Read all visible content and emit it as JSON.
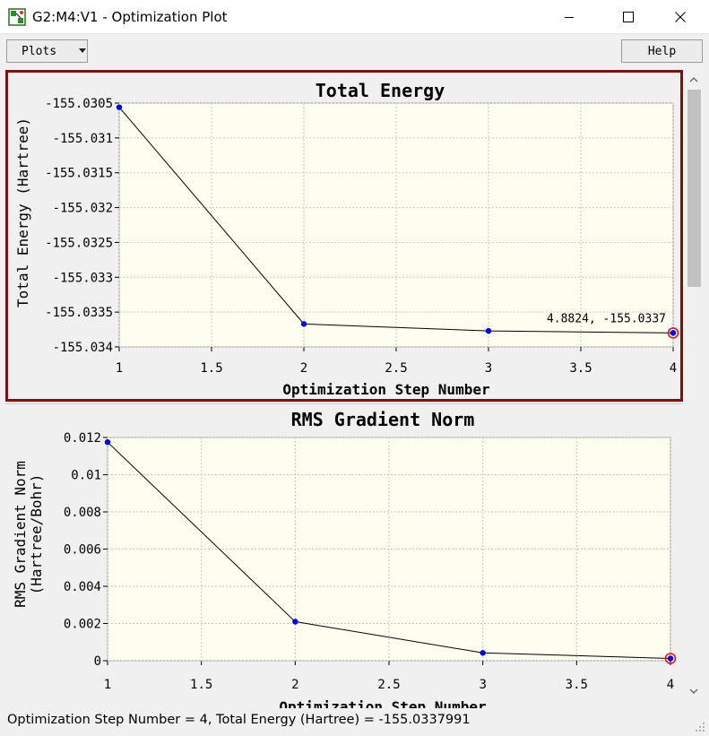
{
  "window": {
    "title": "G2:M4:V1 - Optimization Plot"
  },
  "toolbar": {
    "plots_label": "Plots",
    "help_label": "Help"
  },
  "icons": {
    "app": "molecule-app-icon",
    "minimize": "minimize-icon",
    "maximize": "maximize-icon",
    "close": "close-icon",
    "dropdown": "chevron-down-icon",
    "scroll_up": "arrow-up-icon",
    "scroll_down": "arrow-down-icon"
  },
  "colors": {
    "plot_bg": "#fdfdf0",
    "point": "#0000e6",
    "line": "#000000",
    "selected_ring": "#e01818",
    "active_border": "#7a1212"
  },
  "status": {
    "text": "Optimization Step Number = 4, Total Energy (Hartree) = -155.0337991"
  },
  "chart_data": [
    {
      "type": "line",
      "title": "Total Energy",
      "xlabel": "Optimization Step Number",
      "ylabel": "Total Energy  (Hartree)",
      "x": [
        1,
        2,
        3,
        4
      ],
      "y": [
        -155.03056,
        -155.03367,
        -155.03377,
        -155.0337991
      ],
      "xlim": [
        1,
        4
      ],
      "ylim": [
        -155.034,
        -155.0305
      ],
      "xticks": [
        "1",
        "1.5",
        "2",
        "2.5",
        "3",
        "3.5",
        "4"
      ],
      "yticks": [
        "-155.0305",
        "-155.031",
        "-155.0315",
        "-155.032",
        "-155.0325",
        "-155.033",
        "-155.0335",
        "-155.034"
      ],
      "grid": true,
      "selected_index": 3,
      "annotation": "4.8824, -155.0337"
    },
    {
      "type": "line",
      "title": "RMS Gradient Norm",
      "xlabel": "Optimization Step Number",
      "ylabel": "RMS Gradient Norm",
      "ylabel2": "(Hartree/Bohr)",
      "x": [
        1,
        2,
        3,
        4
      ],
      "y": [
        0.01175,
        0.0021,
        0.00042,
        0.00012
      ],
      "xlim": [
        1,
        4
      ],
      "ylim": [
        0,
        0.012
      ],
      "xticks": [
        "1",
        "1.5",
        "2",
        "2.5",
        "3",
        "3.5",
        "4"
      ],
      "yticks": [
        "0.012",
        "0.01",
        "0.008",
        "0.006",
        "0.004",
        "0.002",
        "0"
      ],
      "grid": true,
      "selected_index": 3
    }
  ]
}
